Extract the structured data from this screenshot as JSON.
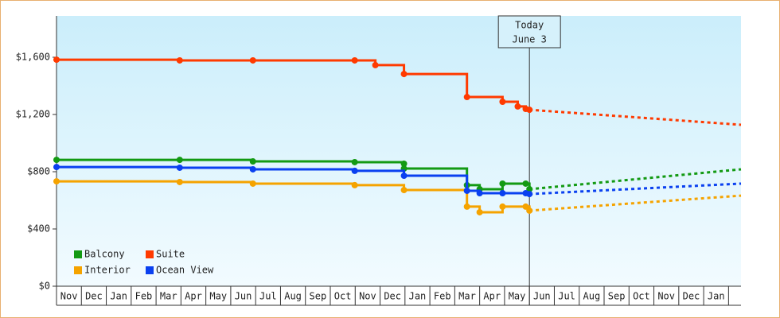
{
  "chart_data": {
    "type": "step-line",
    "categories": [
      "Nov",
      "Dec",
      "Jan",
      "Feb",
      "Mar",
      "Apr",
      "May",
      "Jun",
      "Jul",
      "Aug",
      "Sep",
      "Oct",
      "Nov",
      "Dec",
      "Jan",
      "Feb",
      "Mar",
      "Apr",
      "May",
      "Jun",
      "Jul",
      "Aug",
      "Sep",
      "Oct",
      "Nov",
      "Dec",
      "Jan"
    ],
    "xlim": [
      0,
      27.5
    ],
    "ylim": [
      0,
      1889
    ],
    "yticks": [
      {
        "value": 0,
        "label": "$0"
      },
      {
        "value": 400,
        "label": "$400"
      },
      {
        "value": 800,
        "label": "$800"
      },
      {
        "value": 1200,
        "label": "$1,200"
      },
      {
        "value": 1600,
        "label": "$1,600"
      }
    ],
    "annotation": {
      "x": 19,
      "lines": [
        "Today",
        "June 3"
      ]
    },
    "series": [
      {
        "name": "Balcony",
        "color": "#139a13",
        "x": [
          0,
          4.95,
          7.89,
          11.98,
          13.96,
          13.96,
          16.49,
          17.0,
          17.92,
          18.85,
          19.0
        ],
        "values": [
          883,
          883,
          872,
          867,
          856,
          822,
          706,
          678,
          717,
          717,
          678
        ],
        "forecast_x": [
          19.0,
          27.5
        ],
        "forecast_values": [
          678,
          817
        ]
      },
      {
        "name": "Suite",
        "color": "#ff3a00",
        "x": [
          0,
          4.95,
          7.89,
          11.98,
          12.81,
          13.96,
          16.49,
          17.92,
          18.53,
          18.85,
          19.0
        ],
        "values": [
          1583,
          1578,
          1578,
          1578,
          1545,
          1483,
          1322,
          1289,
          1256,
          1239,
          1233
        ],
        "forecast_x": [
          19.0,
          27.5
        ],
        "forecast_values": [
          1233,
          1128
        ]
      },
      {
        "name": "Interior",
        "color": "#f5a300",
        "x": [
          0,
          4.95,
          7.89,
          11.98,
          13.96,
          16.49,
          17.0,
          17.92,
          18.85,
          19.0
        ],
        "values": [
          733,
          728,
          717,
          706,
          672,
          556,
          517,
          556,
          556,
          528
        ],
        "forecast_x": [
          19.0,
          27.5
        ],
        "forecast_values": [
          528,
          633
        ]
      },
      {
        "name": "Ocean View",
        "color": "#0a40f0",
        "x": [
          0,
          4.95,
          7.89,
          11.98,
          13.96,
          16.49,
          17.0,
          17.92,
          18.85,
          19.0
        ],
        "values": [
          833,
          828,
          817,
          806,
          772,
          667,
          650,
          650,
          650,
          644
        ],
        "forecast_x": [
          19.0,
          27.5
        ],
        "forecast_values": [
          644,
          717
        ]
      }
    ]
  }
}
